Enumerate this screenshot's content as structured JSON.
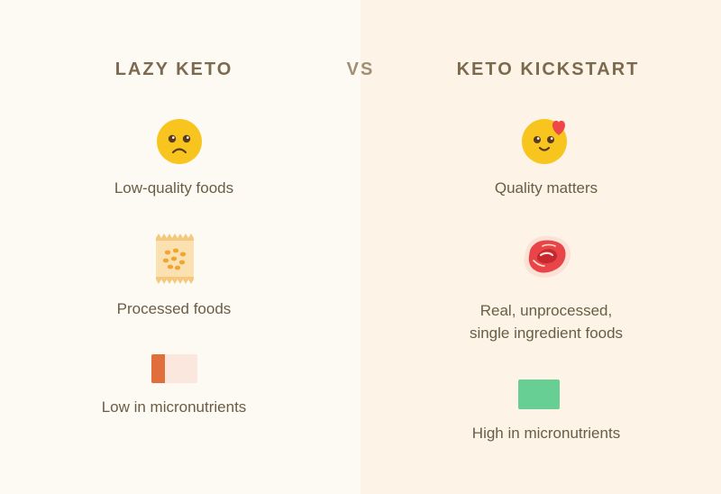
{
  "left": {
    "title": "LAZY KETO",
    "items": [
      {
        "label": "Low-quality foods",
        "icon": "sad-face-icon"
      },
      {
        "label": "Processed foods",
        "icon": "chips-bag-icon"
      },
      {
        "label": "Low in micronutrients",
        "icon": "low-bar-icon"
      }
    ]
  },
  "vs": "VS",
  "right": {
    "title": "KETO KICKSTART",
    "items": [
      {
        "label": "Quality matters",
        "icon": "love-face-icon"
      },
      {
        "label_line1": "Real, unprocessed,",
        "label_line2": "single ingredient foods",
        "icon": "steak-icon"
      },
      {
        "label": "High in micronutrients",
        "icon": "high-bar-icon"
      }
    ]
  },
  "colors": {
    "text": "#6a5d45",
    "title": "#7b6a4e",
    "low_bar": "#e06f3c",
    "high_bar": "#67cf94",
    "face": "#f7c51e",
    "heart": "#ef4749"
  }
}
